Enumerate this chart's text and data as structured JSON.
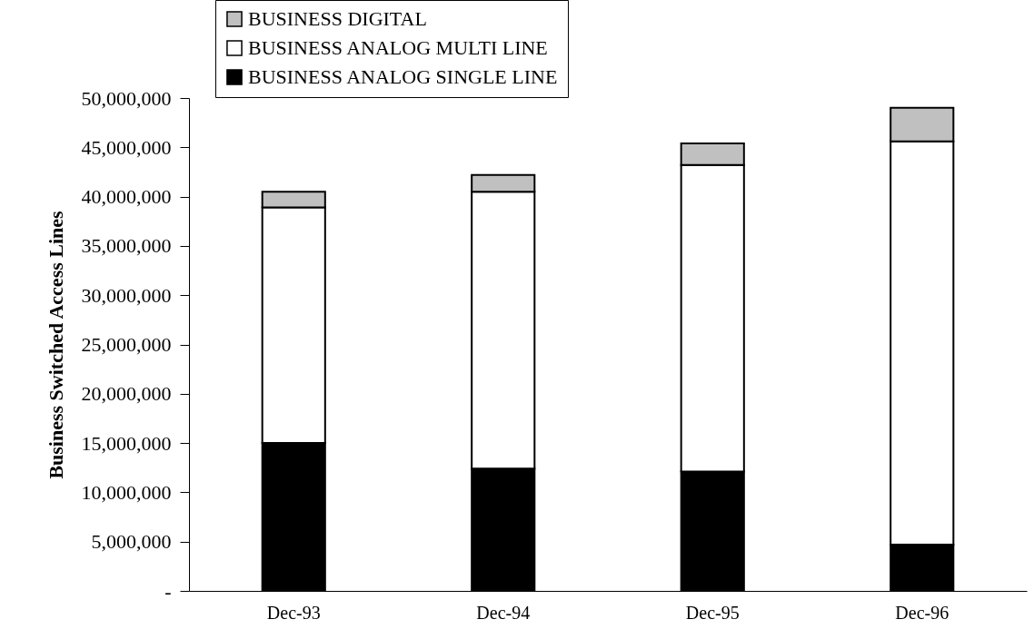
{
  "chart_data": {
    "type": "bar",
    "ylabel": "Business Switched Access Lines",
    "categories": [
      "Dec-93",
      "Dec-94",
      "Dec-95",
      "Dec-96"
    ],
    "series": [
      {
        "name": "BUSINESS ANALOG SINGLE LINE",
        "color": "#000000",
        "values": [
          15000000,
          12400000,
          12100000,
          4700000
        ]
      },
      {
        "name": "BUSINESS ANALOG MULTI LINE",
        "color": "#ffffff",
        "values": [
          23900000,
          28100000,
          31100000,
          40900000
        ]
      },
      {
        "name": "BUSINESS DIGITAL",
        "color": "#c0c0c0",
        "values": [
          1600000,
          1700000,
          2200000,
          3400000
        ]
      }
    ],
    "stacked": true,
    "ylim": [
      0,
      50000000
    ],
    "yticks": [
      {
        "value": 0,
        "label": "-"
      },
      {
        "value": 5000000,
        "label": "5,000,000"
      },
      {
        "value": 10000000,
        "label": "10,000,000"
      },
      {
        "value": 15000000,
        "label": "15,000,000"
      },
      {
        "value": 20000000,
        "label": "20,000,000"
      },
      {
        "value": 25000000,
        "label": "25,000,000"
      },
      {
        "value": 30000000,
        "label": "30,000,000"
      },
      {
        "value": 35000000,
        "label": "35,000,000"
      },
      {
        "value": 40000000,
        "label": "40,000,000"
      },
      {
        "value": 45000000,
        "label": "45,000,000"
      },
      {
        "value": 50000000,
        "label": "50,000,000"
      }
    ],
    "legend": "top"
  }
}
